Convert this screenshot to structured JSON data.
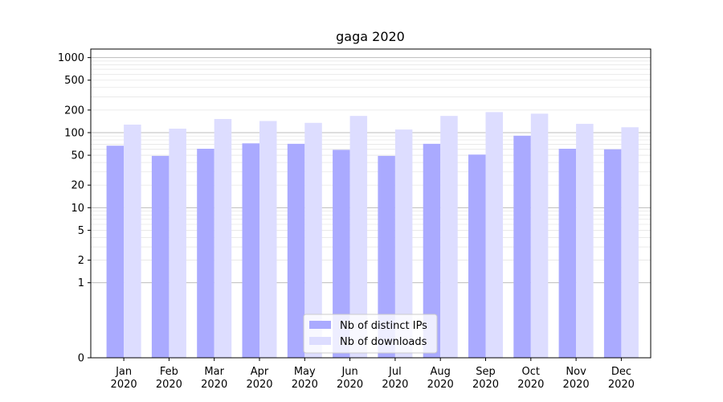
{
  "chart_data": {
    "type": "bar",
    "title": "gaga 2020",
    "xlabel": "",
    "ylabel": "",
    "y_scale": "symlog",
    "ylim": [
      0,
      1300
    ],
    "grid": "horizontal",
    "categories": [
      {
        "month": "Jan",
        "year": "2020"
      },
      {
        "month": "Feb",
        "year": "2020"
      },
      {
        "month": "Mar",
        "year": "2020"
      },
      {
        "month": "Apr",
        "year": "2020"
      },
      {
        "month": "May",
        "year": "2020"
      },
      {
        "month": "Jun",
        "year": "2020"
      },
      {
        "month": "Jul",
        "year": "2020"
      },
      {
        "month": "Aug",
        "year": "2020"
      },
      {
        "month": "Sep",
        "year": "2020"
      },
      {
        "month": "Oct",
        "year": "2020"
      },
      {
        "month": "Nov",
        "year": "2020"
      },
      {
        "month": "Dec",
        "year": "2020"
      }
    ],
    "y_ticks": [
      {
        "value": 0,
        "label": "0"
      },
      {
        "value": 1,
        "label": "1"
      },
      {
        "value": 2,
        "label": "2"
      },
      {
        "value": 5,
        "label": "5"
      },
      {
        "value": 10,
        "label": "10"
      },
      {
        "value": 20,
        "label": "20"
      },
      {
        "value": 50,
        "label": "50"
      },
      {
        "value": 100,
        "label": "100"
      },
      {
        "value": 200,
        "label": "200"
      },
      {
        "value": 500,
        "label": "500"
      },
      {
        "value": 1000,
        "label": "1000"
      }
    ],
    "series": [
      {
        "name": "Nb of distinct IPs",
        "color": "#aaaaff",
        "values": [
          67,
          49,
          61,
          72,
          71,
          59,
          49,
          71,
          51,
          91,
          61,
          60
        ]
      },
      {
        "name": "Nb of downloads",
        "color": "#ddddff",
        "values": [
          128,
          113,
          152,
          143,
          135,
          167,
          110,
          167,
          188,
          179,
          131,
          118
        ]
      }
    ],
    "legend": {
      "position": "bottom-center",
      "entries": [
        "Nb of distinct IPs",
        "Nb of downloads"
      ]
    }
  }
}
